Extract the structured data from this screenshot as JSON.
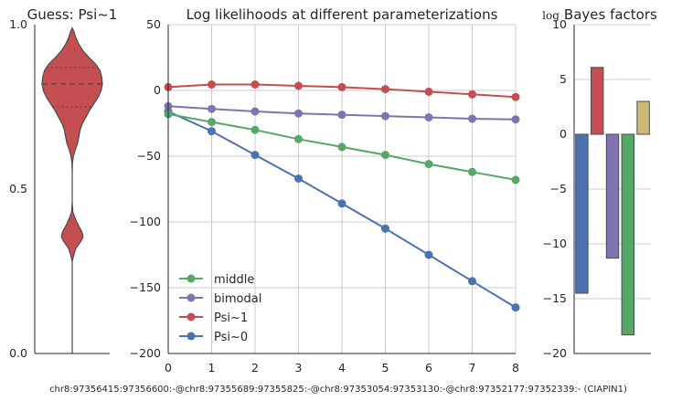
{
  "footer_text": "chr8:97356415:97356600:-@chr8:97355689:97355825:-@chr8:97353054:97353130:-@chr8:97352177:97352339:- (CIAPIN1)",
  "chart_data": [
    {
      "type": "violin",
      "title": "Guess: Psi~1",
      "ylim": [
        0,
        1
      ],
      "yticks": [
        "0.0",
        "0.5",
        "1.0"
      ],
      "color": "#c44e52",
      "median": 0.82,
      "quartiles": [
        0.75,
        0.87
      ],
      "range": [
        0.28,
        0.99
      ],
      "density": [
        [
          0.28,
          0.0
        ],
        [
          0.3,
          0.05
        ],
        [
          0.32,
          0.12
        ],
        [
          0.34,
          0.28
        ],
        [
          0.355,
          0.36
        ],
        [
          0.37,
          0.32
        ],
        [
          0.39,
          0.2
        ],
        [
          0.41,
          0.1
        ],
        [
          0.43,
          0.02
        ],
        [
          0.46,
          0.0
        ],
        [
          0.5,
          0.0
        ],
        [
          0.55,
          0.0
        ],
        [
          0.58,
          0.01
        ],
        [
          0.6,
          0.04
        ],
        [
          0.62,
          0.1
        ],
        [
          0.64,
          0.18
        ],
        [
          0.66,
          0.22
        ],
        [
          0.68,
          0.26
        ],
        [
          0.7,
          0.34
        ],
        [
          0.72,
          0.46
        ],
        [
          0.74,
          0.58
        ],
        [
          0.76,
          0.72
        ],
        [
          0.78,
          0.86
        ],
        [
          0.8,
          0.96
        ],
        [
          0.82,
          1.0
        ],
        [
          0.84,
          0.98
        ],
        [
          0.86,
          0.92
        ],
        [
          0.88,
          0.78
        ],
        [
          0.9,
          0.56
        ],
        [
          0.92,
          0.36
        ],
        [
          0.94,
          0.22
        ],
        [
          0.96,
          0.12
        ],
        [
          0.98,
          0.05
        ],
        [
          0.99,
          0.0
        ]
      ]
    },
    {
      "type": "line",
      "title": "Log likelihoods at different parameterizations",
      "x": [
        0,
        1,
        2,
        3,
        4,
        5,
        6,
        7,
        8
      ],
      "xlim": [
        0,
        8
      ],
      "ylim": [
        -200,
        50
      ],
      "xticks": [
        "0",
        "1",
        "2",
        "3",
        "4",
        "5",
        "6",
        "7",
        "8"
      ],
      "yticks": [
        "50",
        "0",
        "−50",
        "−100",
        "−150",
        "−200"
      ],
      "grid": true,
      "legend_position": "lower-left",
      "series": [
        {
          "name": "middle",
          "color": "#55a868",
          "values": [
            -18,
            -24,
            -30,
            -37,
            -43,
            -49,
            -56,
            -62,
            -68
          ]
        },
        {
          "name": "bimodal",
          "color": "#8172b2",
          "values": [
            -12,
            -14,
            -16,
            -17.5,
            -18.5,
            -19.5,
            -20.5,
            -21.5,
            -22
          ]
        },
        {
          "name": "Psi~1",
          "color": "#c44e52",
          "values": [
            2.5,
            4.5,
            4.5,
            3.5,
            2.5,
            1,
            -1,
            -3,
            -5
          ]
        },
        {
          "name": "Psi~0",
          "color": "#4c72b0",
          "values": [
            -16,
            -31,
            -49,
            -67,
            -86,
            -105,
            -125,
            -145,
            -165
          ]
        }
      ]
    },
    {
      "type": "bar",
      "title": "Bayes factors",
      "title_prefix": "log",
      "ylim": [
        -20,
        10
      ],
      "yticks": [
        "10",
        "5",
        "0",
        "−5",
        "−10",
        "−15",
        "−20"
      ],
      "grid": true,
      "bars": [
        {
          "value": -14.5,
          "color": "#4c72b0"
        },
        {
          "value": 6.1,
          "color": "#c44e52"
        },
        {
          "value": -11.3,
          "color": "#8172b2"
        },
        {
          "value": -18.3,
          "color": "#55a868"
        },
        {
          "value": 3.0,
          "color": "#ccb974"
        }
      ]
    }
  ]
}
